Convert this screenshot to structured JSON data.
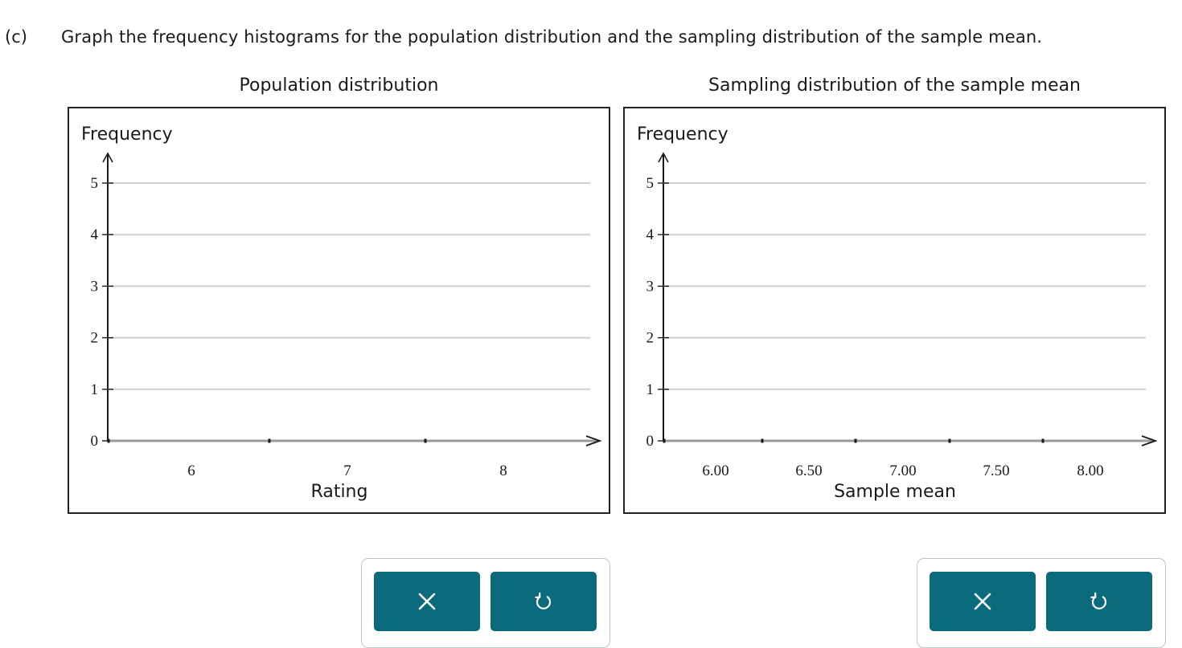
{
  "question": {
    "part": "(c)",
    "prompt": "Graph the frequency histograms for the population distribution and the sampling distribution of the sample mean."
  },
  "graphs": [
    {
      "title": "Population distribution",
      "ylabel": "Frequency",
      "xlabel": "Rating",
      "yticks": [
        "0",
        "1",
        "2",
        "3",
        "4",
        "5"
      ],
      "xticks": [
        "6",
        "7",
        "8"
      ]
    },
    {
      "title": "Sampling distribution of the sample mean",
      "ylabel": "Frequency",
      "xlabel": "Sample mean",
      "yticks": [
        "0",
        "1",
        "2",
        "3",
        "4",
        "5"
      ],
      "xticks": [
        "6.00",
        "6.50",
        "7.00",
        "7.50",
        "8.00"
      ]
    }
  ],
  "chart_data": [
    {
      "type": "bar",
      "title": "Population distribution",
      "xlabel": "Rating",
      "ylabel": "Frequency",
      "categories": [
        "6",
        "7",
        "8"
      ],
      "values": [
        0,
        0,
        0
      ],
      "ylim": [
        0,
        5
      ],
      "grid": true
    },
    {
      "type": "bar",
      "title": "Sampling distribution of the sample mean",
      "xlabel": "Sample mean",
      "ylabel": "Frequency",
      "categories": [
        "6.00",
        "6.50",
        "7.00",
        "7.50",
        "8.00"
      ],
      "values": [
        0,
        0,
        0,
        0,
        0
      ],
      "ylim": [
        0,
        5
      ],
      "grid": true
    }
  ],
  "toolbars": [
    {
      "clear_icon": "close-icon",
      "undo_icon": "undo-icon"
    },
    {
      "clear_icon": "close-icon",
      "undo_icon": "undo-icon"
    }
  ],
  "colors": {
    "button": "#0b6b7c",
    "gridline": "#cfcfcf",
    "axis": "#1a1a1a"
  }
}
